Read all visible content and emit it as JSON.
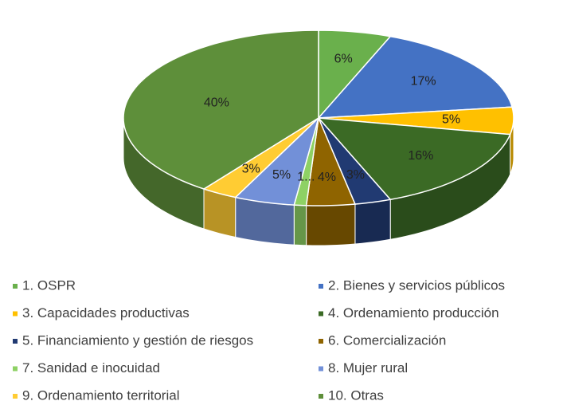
{
  "chart_data": {
    "type": "pie3d",
    "categories": [
      "1. OSPR",
      "2. Bienes y servicios públicos",
      "3. Capacidades productivas",
      "4. Ordenamiento producción",
      "5. Financiamiento y gestión de riesgos",
      "6. Comercialización",
      "7. Sanidad e inocuidad",
      "8. Mujer rural",
      "9. Ordenamiento territorial",
      "10. Otras"
    ],
    "values": [
      6,
      17,
      5,
      16,
      3,
      4,
      1,
      5,
      3,
      40
    ],
    "value_labels": [
      "6%",
      "17%",
      "5%",
      "16%",
      "3%",
      "4%",
      "1...",
      "5%",
      "3%",
      "40%"
    ],
    "colors": [
      "#6ab04c",
      "#4472c4",
      "#ffc000",
      "#3b6a25",
      "#213a72",
      "#8f6400",
      "#8ed164",
      "#7290d8",
      "#ffcc33",
      "#5e8f3a"
    ],
    "legend": "bottom"
  }
}
